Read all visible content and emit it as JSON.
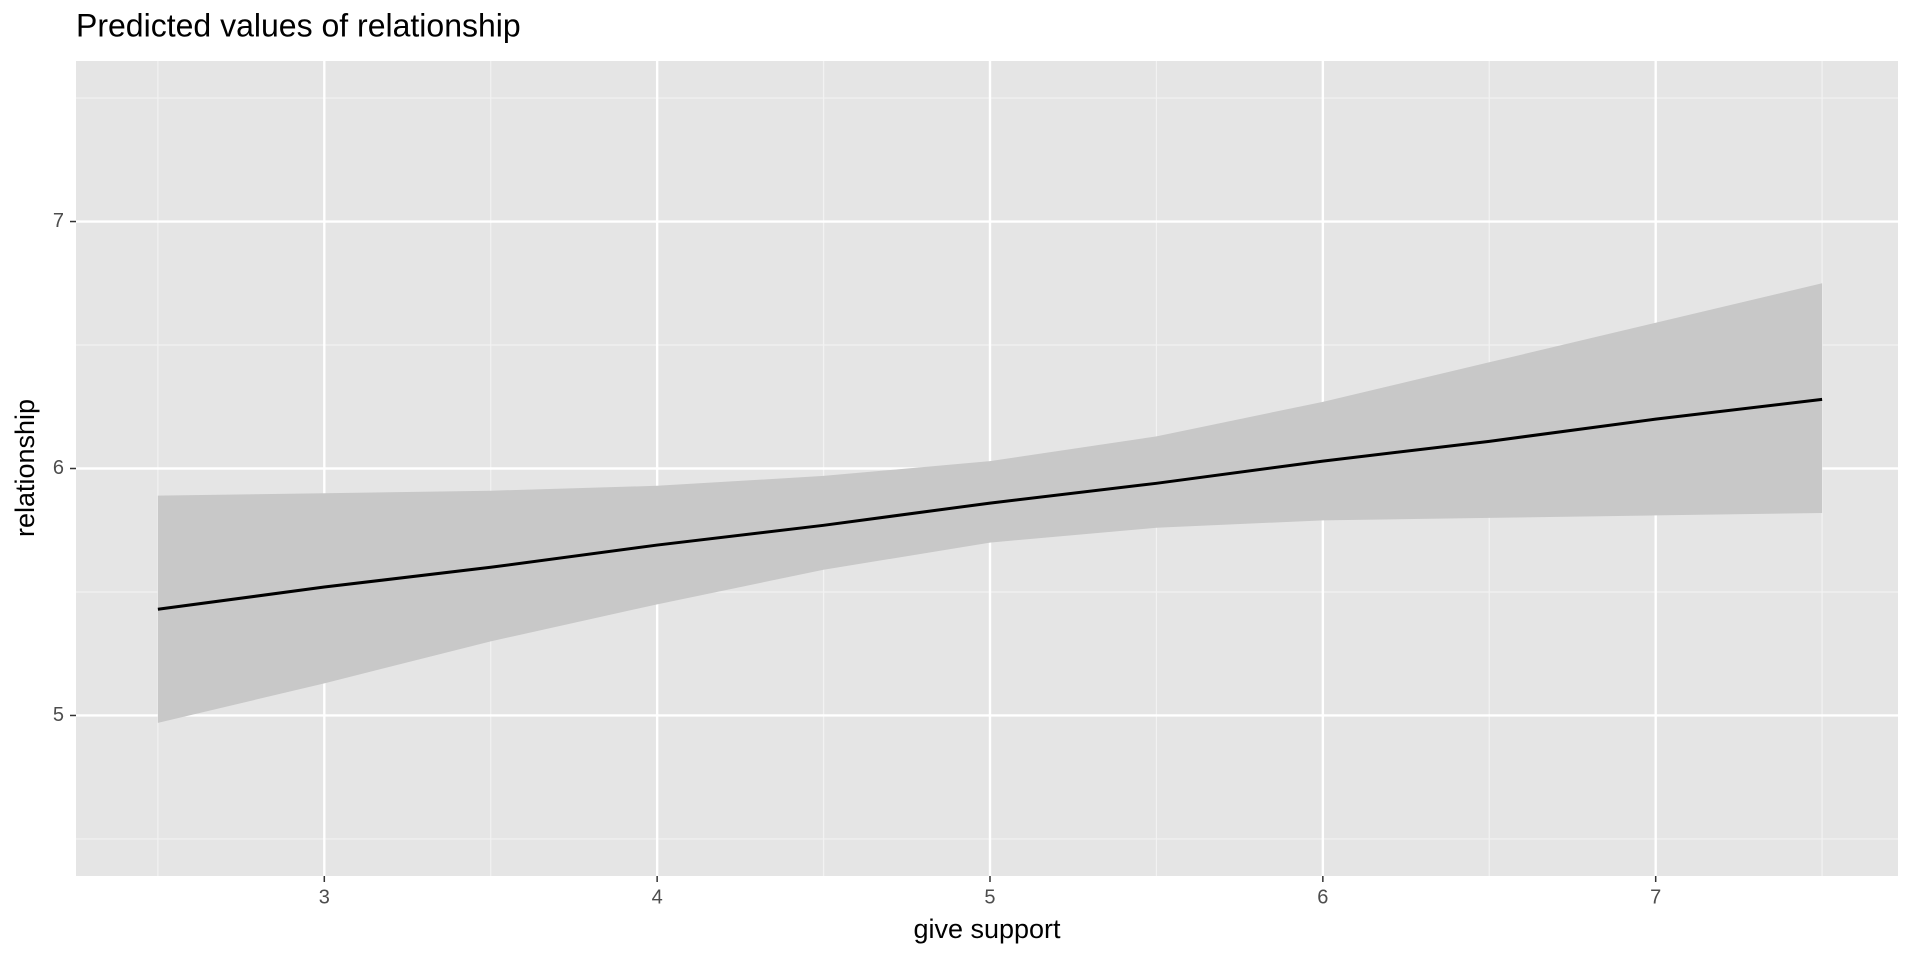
{
  "chart_data": {
    "type": "line",
    "title": "Predicted values of relationship",
    "x_label": "give support",
    "y_label": "relationship",
    "x": [
      2.5,
      3,
      3.5,
      4,
      4.5,
      5,
      5.5,
      6,
      6.5,
      7,
      7.5
    ],
    "series": [
      {
        "color": "#000000",
        "values": [
          5.43,
          5.52,
          5.6,
          5.69,
          5.77,
          5.86,
          5.94,
          6.03,
          6.11,
          6.2,
          6.28
        ],
        "lower": [
          4.97,
          5.13,
          5.3,
          5.45,
          5.59,
          5.7,
          5.76,
          5.79,
          5.8,
          5.81,
          5.82
        ],
        "upper": [
          5.89,
          5.9,
          5.91,
          5.93,
          5.97,
          6.03,
          6.13,
          6.27,
          6.43,
          6.59,
          6.75
        ],
        "band_color": "#c8c8c8"
      }
    ],
    "xlim": [
      2.254,
      7.728
    ],
    "ylim": [
      4.35,
      7.65
    ],
    "xticks": [
      3,
      4,
      5,
      6,
      7
    ],
    "yticks": [
      5,
      6,
      7
    ],
    "xminor": [
      2.5,
      3.5,
      4.5,
      5.5,
      6.5,
      7.5
    ],
    "yminor": [
      4.5,
      5.5,
      6.5,
      7.5
    ],
    "grid": true
  }
}
